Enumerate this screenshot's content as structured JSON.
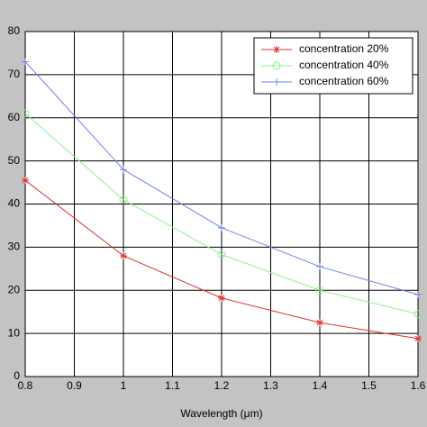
{
  "chart_data": {
    "type": "line",
    "x_label": "Wavelength (μm)",
    "x": [
      0.8,
      1,
      1.2,
      1.4,
      1.6
    ],
    "series": [
      {
        "name": "concentration 20%",
        "color": "#e03030",
        "marker": "star",
        "values": [
          45.5,
          28,
          18.2,
          12.5,
          8.8
        ]
      },
      {
        "name": "concentration 40%",
        "color": "#8ff08f",
        "marker": "circle",
        "values": [
          61,
          41,
          28.3,
          20,
          14.5
        ]
      },
      {
        "name": "concentration 60%",
        "color": "#6f80e8",
        "marker": "plus",
        "values": [
          73,
          48,
          34.5,
          25.5,
          19
        ]
      }
    ],
    "xlim": [
      0.8,
      1.6
    ],
    "xticks": [
      0.8,
      0.9,
      1,
      1.1,
      1.2,
      1.3,
      1.4,
      1.5,
      1.6
    ],
    "ylim": [
      0,
      80
    ],
    "yticks": [
      0,
      10,
      20,
      30,
      40,
      50,
      60,
      70,
      80
    ],
    "grid": true,
    "legend": "upper right"
  }
}
